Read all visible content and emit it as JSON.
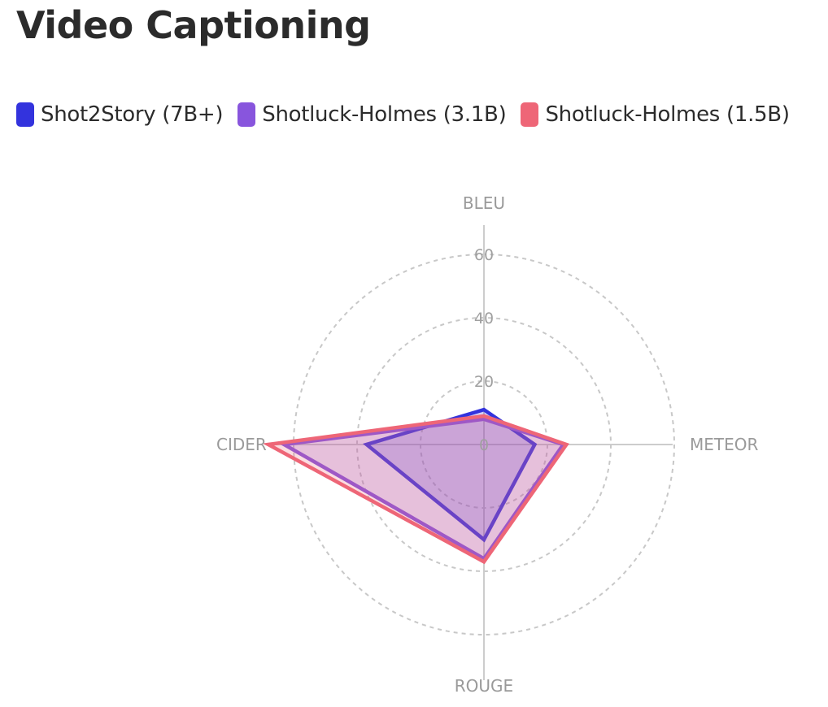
{
  "chart_data": {
    "type": "radar",
    "title": "Video Captioning",
    "axes": [
      "BLEU",
      "METEOR",
      "ROUGE",
      "CIDER"
    ],
    "ticks": [
      "0",
      "20",
      "40",
      "60"
    ],
    "range": [
      0,
      60
    ],
    "grid": "dashed circles",
    "legend_position": "top-left",
    "series": [
      {
        "name": "Shot2Story (7B+)",
        "color": "#3333dd",
        "values": [
          11,
          16,
          30,
          37
        ]
      },
      {
        "name": "Shotluck-Holmes (3.1B)",
        "color": "#8855dd",
        "values": [
          8,
          25,
          36,
          63
        ]
      },
      {
        "name": "Shotluck-Holmes (1.5B)",
        "color": "#ee6677",
        "values": [
          9,
          26,
          37,
          68
        ]
      }
    ]
  }
}
